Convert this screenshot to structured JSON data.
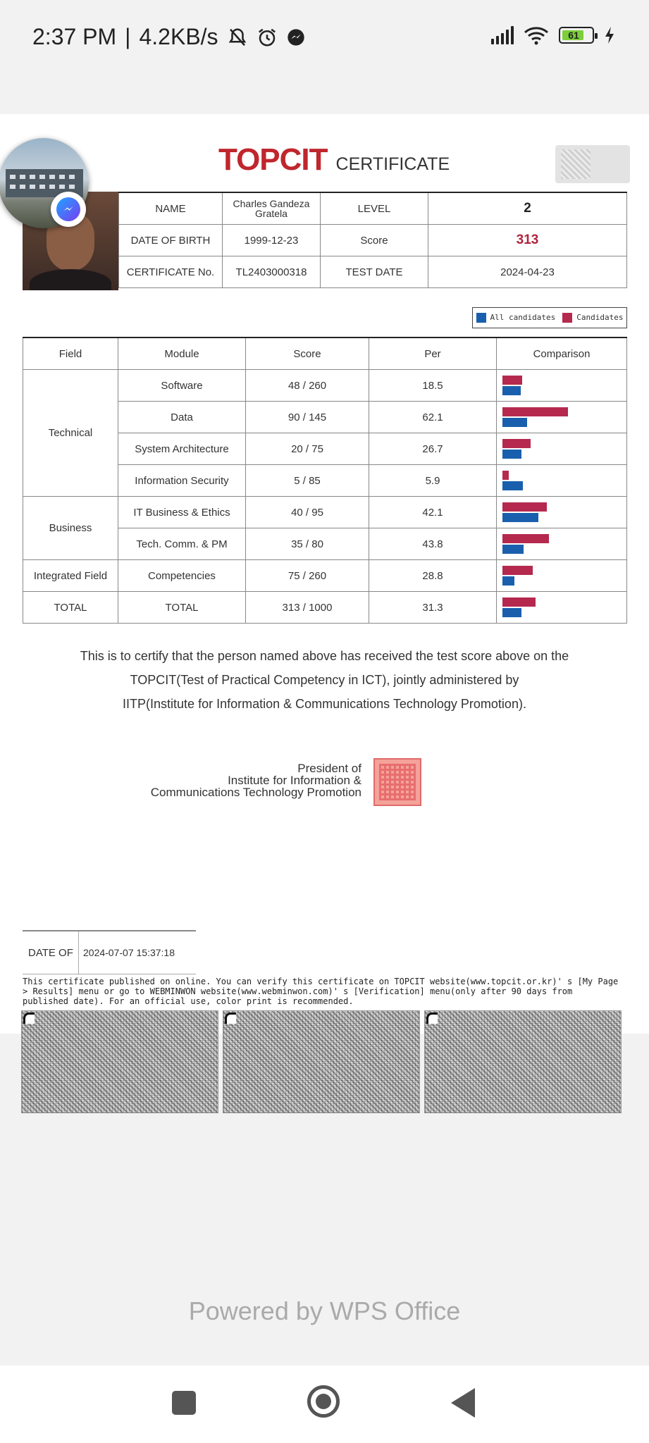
{
  "status_bar": {
    "time": "2:37 PM",
    "net_speed": "4.2KB/s",
    "battery": "61"
  },
  "certificate": {
    "brand": "TOPCIT",
    "doc_title": "CERTIFICATE",
    "fields": {
      "name_label": "NAME",
      "name_value": "Charles Gandeza Gratela",
      "level_label": "LEVEL",
      "level_value": "2",
      "dob_label": "DATE OF BIRTH",
      "dob_value": "1999-12-23",
      "score_label": "Score",
      "score_value": "313",
      "cert_no_label": "CERTIFICATE No.",
      "cert_no_value": "TL2403000318",
      "test_date_label": "TEST DATE",
      "test_date_value": "2024-04-23"
    },
    "legend": {
      "all": "All candidates",
      "cand": "Candidates"
    },
    "results_headers": [
      "Field",
      "Module",
      "Score",
      "Per",
      "Comparison"
    ],
    "results_rows": [
      {
        "field": "Technical",
        "module": "Software",
        "score": "48 / 260",
        "per": "18.5"
      },
      {
        "field": "",
        "module": "Data",
        "score": "90 / 145",
        "per": "62.1"
      },
      {
        "field": "",
        "module": "System Architecture",
        "score": "20 / 75",
        "per": "26.7"
      },
      {
        "field": "",
        "module": "Information Security",
        "score": "5 / 85",
        "per": "5.9"
      },
      {
        "field": "Business",
        "module": "IT Business & Ethics",
        "score": "40 / 95",
        "per": "42.1"
      },
      {
        "field": "",
        "module": "Tech. Comm. & PM",
        "score": "35 / 80",
        "per": "43.8"
      },
      {
        "field": "Integrated Field",
        "module": "Competencies",
        "score": "75 / 260",
        "per": "28.8"
      },
      {
        "field": "TOTAL",
        "module": "TOTAL",
        "score": "313 / 1000",
        "per": "31.3"
      }
    ],
    "cert_text": [
      "This is to certify that the person named above has received the test score above on the",
      "TOPCIT(Test of Practical Competency in ICT), jointly administered by",
      "IITP(Institute for Information & Communications Technology Promotion)."
    ],
    "president_lines": [
      "President of",
      "Institute for Information &",
      "Communications Technology Promotion"
    ],
    "issue_label": "DATE OF",
    "issue_value": "2024-07-07 15:37:18",
    "note": "This certificate published on online. You can verify this certificate on TOPCIT website(www.topcit.or.kr)' s [My Page > Results] menu or go to WEBMINWON website(www.webminwon.com)' s [Verification] menu(only after 90 days from published date). For an official use, color print is recommended."
  },
  "chart_data": {
    "type": "bar",
    "categories": [
      "Software",
      "Data",
      "System Architecture",
      "Information Security",
      "IT Business & Ethics",
      "Tech. Comm. & PM",
      "Competencies",
      "TOTAL"
    ],
    "series": [
      {
        "name": "Candidates",
        "values": [
          18.5,
          62.1,
          26.7,
          5.9,
          42.1,
          43.8,
          28.8,
          31.3
        ]
      },
      {
        "name": "All candidates",
        "values": [
          17.5,
          23,
          18,
          19,
          34,
          20,
          11,
          18
        ]
      }
    ],
    "colors": {
      "Candidates": "#b5294f",
      "All candidates": "#1a5fad"
    },
    "ylim": [
      0,
      100
    ]
  },
  "footer": {
    "powered_by": "Powered by WPS Office"
  }
}
